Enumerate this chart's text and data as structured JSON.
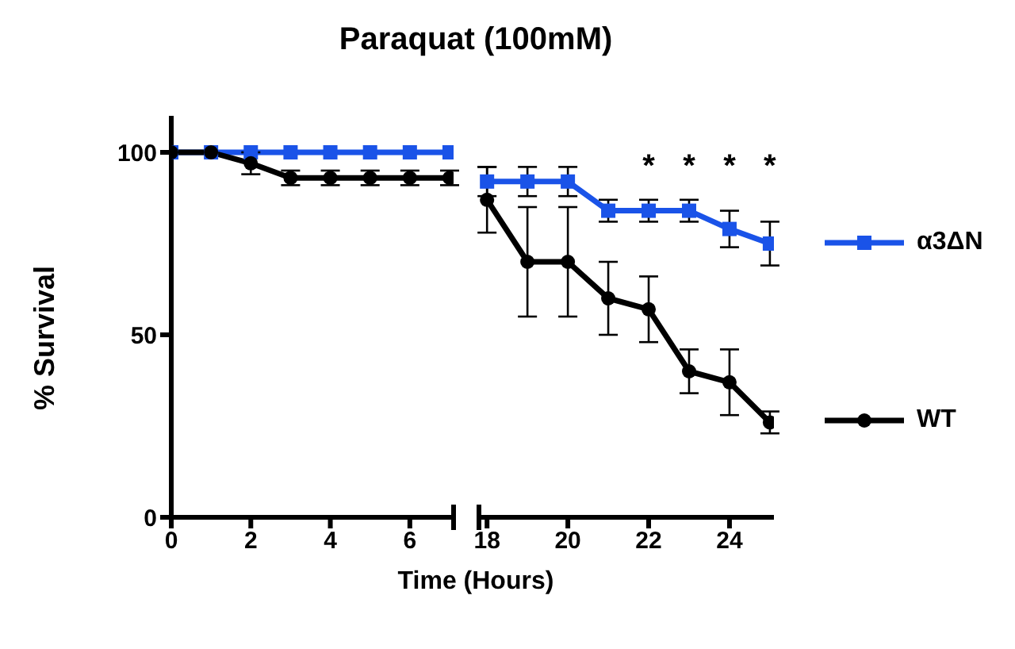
{
  "chart_data": [
    {
      "type": "line",
      "title": "Paraquat (100mM)",
      "xlabel": "Time (Hours)",
      "ylabel": "% Survival",
      "x": [
        0,
        1,
        2,
        3,
        4,
        5,
        6,
        7
      ],
      "xlim": [
        0,
        7.1
      ],
      "xticks": [
        0,
        2,
        4,
        6
      ],
      "ylim": [
        0,
        110
      ],
      "yticks": [
        0,
        50,
        100
      ],
      "grid": false,
      "legend": false,
      "series": [
        {
          "color": "#1a53e8",
          "marker": "square",
          "values": [
            100,
            100,
            100,
            100,
            100,
            100,
            100,
            100
          ]
        },
        {
          "color": "#000000",
          "marker": "circle",
          "values": [
            100,
            100,
            97,
            93,
            93,
            93,
            93,
            93
          ],
          "errors": [
            null,
            null,
            3,
            2,
            2,
            2,
            2,
            2
          ]
        }
      ]
    },
    {
      "type": "line",
      "x": [
        18,
        19,
        20,
        21,
        22,
        23,
        24,
        25
      ],
      "xlim": [
        17.8,
        25.1
      ],
      "xticks": [
        18,
        20,
        22,
        24
      ],
      "ylim": [
        0,
        100
      ],
      "yticks": [
        0,
        50,
        100
      ],
      "tick_labels": "x",
      "grid": false,
      "legend": "right",
      "annotations": [
        "*",
        "*",
        "*",
        "*"
      ],
      "series": [
        {
          "name": "α3ΔN",
          "color": "#1a53e8",
          "marker": "square",
          "values": [
            92,
            92,
            92,
            84,
            84,
            84,
            79,
            75
          ],
          "errors": [
            4,
            4,
            4,
            3,
            3,
            3,
            5,
            6
          ]
        },
        {
          "name": "WT",
          "color": "#000000",
          "marker": "circle",
          "values": [
            87,
            70,
            70,
            60,
            57,
            40,
            37,
            26
          ],
          "errors": [
            9,
            15,
            15,
            10,
            9,
            6,
            9,
            3
          ]
        }
      ]
    }
  ]
}
